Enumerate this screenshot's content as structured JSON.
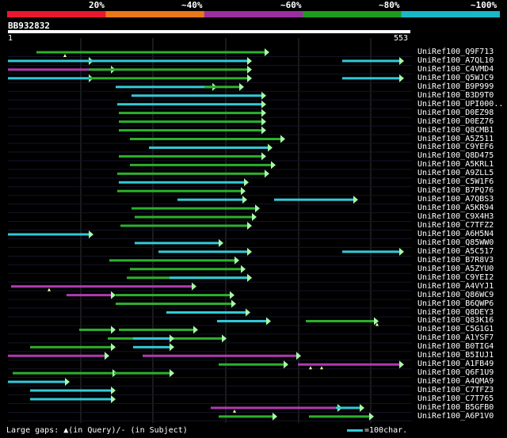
{
  "legend": {
    "labels": [
      "20%",
      "~40%",
      "~60%",
      "~80%",
      "~100%"
    ],
    "colors": [
      "#e8182f",
      "#e8781a",
      "#9c2fa0",
      "#1e9a1e",
      "#18b8c8"
    ]
  },
  "query": {
    "id": "BB932832",
    "start": "1",
    "end": "553"
  },
  "colors": {
    "green": "#2db02d",
    "cyan": "#33c9d8",
    "magenta": "#b03ab0",
    "grid": "#333333",
    "arrow_fill": "#a6f9a6",
    "gap_marker": "#ffffa0"
  },
  "hits": [
    {
      "label": "UniRef100_Q9F713",
      "segs": [
        [
          46,
          340,
          "green"
        ]
      ],
      "gaps": [
        82
      ]
    },
    {
      "label": "UniRef100_A7QL10",
      "segs": [
        [
          10,
          118,
          "cyan"
        ],
        [
          112,
          318,
          "cyan"
        ],
        [
          432,
          510,
          "cyan"
        ]
      ]
    },
    {
      "label": "UniRef100_C4VMD4",
      "segs": [
        [
          10,
          146,
          "magenta"
        ],
        [
          112,
          318,
          "green"
        ]
      ]
    },
    {
      "label": "UniRef100_Q5WJC9",
      "segs": [
        [
          10,
          118,
          "cyan"
        ],
        [
          112,
          318,
          "green"
        ],
        [
          432,
          510,
          "cyan"
        ]
      ]
    },
    {
      "label": "UniRef100_B9P999",
      "segs": [
        [
          146,
          274,
          "cyan"
        ],
        [
          258,
          308,
          "green"
        ]
      ]
    },
    {
      "label": "UniRef100_B3D9T0",
      "segs": [
        [
          166,
          336,
          "cyan"
        ]
      ]
    },
    {
      "label": "UniRef100_UPI000..",
      "segs": [
        [
          148,
          336,
          "cyan"
        ]
      ]
    },
    {
      "label": "UniRef100_D0EZ98",
      "segs": [
        [
          150,
          336,
          "green"
        ]
      ]
    },
    {
      "label": "UniRef100_D0EZ76",
      "segs": [
        [
          150,
          336,
          "green"
        ]
      ]
    },
    {
      "label": "UniRef100_Q8CMB1",
      "segs": [
        [
          150,
          336,
          "green"
        ]
      ]
    },
    {
      "label": "UniRef100_A5Z511",
      "segs": [
        [
          164,
          360,
          "green"
        ]
      ]
    },
    {
      "label": "UniRef100_C9YEF6",
      "segs": [
        [
          188,
          344,
          "cyan"
        ]
      ]
    },
    {
      "label": "UniRef100_Q8D475",
      "segs": [
        [
          150,
          336,
          "green"
        ]
      ]
    },
    {
      "label": "UniRef100_A5KRL1",
      "segs": [
        [
          164,
          348,
          "green"
        ]
      ]
    },
    {
      "label": "UniRef100_A9ZLL5",
      "segs": [
        [
          148,
          340,
          "green"
        ]
      ]
    },
    {
      "label": "UniRef100_C5W1F6",
      "segs": [
        [
          150,
          314,
          "cyan"
        ]
      ]
    },
    {
      "label": "UniRef100_B7PQ76",
      "segs": [
        [
          148,
          310,
          "green"
        ]
      ]
    },
    {
      "label": "UniRef100_A7QBS3",
      "segs": [
        [
          224,
          312,
          "cyan"
        ],
        [
          346,
          452,
          "cyan"
        ]
      ]
    },
    {
      "label": "UniRef100_A5KR94",
      "segs": [
        [
          166,
          328,
          "green"
        ]
      ]
    },
    {
      "label": "UniRef100_C9X4H3",
      "segs": [
        [
          170,
          324,
          "green"
        ]
      ]
    },
    {
      "label": "UniRef100_C7TFZ2",
      "segs": [
        [
          152,
          318,
          "green"
        ]
      ]
    },
    {
      "label": "UniRef100_A6H5N4",
      "segs": [
        [
          10,
          118,
          "cyan"
        ]
      ]
    },
    {
      "label": "UniRef100_Q85WW0",
      "segs": [
        [
          170,
          282,
          "cyan"
        ]
      ]
    },
    {
      "label": "UniRef100_A5C517",
      "segs": [
        [
          200,
          318,
          "cyan"
        ],
        [
          432,
          510,
          "cyan"
        ]
      ]
    },
    {
      "label": "UniRef100_B7R8V3",
      "segs": [
        [
          138,
          302,
          "green"
        ]
      ]
    },
    {
      "label": "UniRef100_A5ZYU0",
      "segs": [
        [
          164,
          310,
          "green"
        ]
      ]
    },
    {
      "label": "UniRef100_C9YEI2",
      "segs": [
        [
          160,
          318,
          "green"
        ],
        [
          214,
          318,
          "cyan"
        ]
      ]
    },
    {
      "label": "UniRef100_A4VYJ1",
      "segs": [
        [
          14,
          248,
          "magenta"
        ]
      ],
      "gaps": [
        62
      ]
    },
    {
      "label": "UniRef100_Q86WC9",
      "segs": [
        [
          84,
          146,
          "magenta"
        ],
        [
          146,
          296,
          "green"
        ]
      ]
    },
    {
      "label": "UniRef100_B6QWP6",
      "segs": [
        [
          146,
          298,
          "green"
        ]
      ]
    },
    {
      "label": "UniRef100_Q8DEY3",
      "segs": [
        [
          210,
          316,
          "cyan"
        ]
      ]
    },
    {
      "label": "UniRef100_Q83K16",
      "segs": [
        [
          274,
          342,
          "cyan"
        ],
        [
          386,
          478,
          "green"
        ]
      ],
      "gaps": [
        476
      ]
    },
    {
      "label": "UniRef100_C5G1G1",
      "segs": [
        [
          100,
          146,
          "green"
        ],
        [
          150,
          250,
          "green"
        ]
      ]
    },
    {
      "label": "UniRef100_A1YSF7",
      "segs": [
        [
          136,
          286,
          "green"
        ],
        [
          168,
          220,
          "cyan"
        ]
      ]
    },
    {
      "label": "UniRef100_B0TIG4",
      "segs": [
        [
          38,
          146,
          "green"
        ],
        [
          168,
          220,
          "cyan"
        ]
      ]
    },
    {
      "label": "UniRef100_B5IUJ1",
      "segs": [
        [
          10,
          138,
          "magenta"
        ],
        [
          180,
          380,
          "magenta"
        ]
      ]
    },
    {
      "label": "UniRef100_A1FB49",
      "segs": [
        [
          276,
          364,
          "green"
        ],
        [
          376,
          510,
          "magenta"
        ]
      ],
      "gaps": [
        392,
        406
      ]
    },
    {
      "label": "UniRef100_Q6F1U9",
      "segs": [
        [
          16,
          148,
          "green"
        ],
        [
          144,
          220,
          "green"
        ]
      ]
    },
    {
      "label": "UniRef100_A4QMA9",
      "segs": [
        [
          10,
          88,
          "cyan"
        ]
      ]
    },
    {
      "label": "UniRef100_C7TFZ3",
      "segs": [
        [
          38,
          146,
          "cyan"
        ]
      ]
    },
    {
      "label": "UniRef100_C7T765",
      "segs": [
        [
          38,
          146,
          "cyan"
        ]
      ]
    },
    {
      "label": "UniRef100_B5GFB0",
      "segs": [
        [
          266,
          432,
          "magenta"
        ],
        [
          424,
          460,
          "cyan"
        ]
      ],
      "gaps": [
        296
      ]
    },
    {
      "label": "UniRef100_A6P1V0",
      "segs": [
        [
          276,
          350,
          "green"
        ],
        [
          390,
          472,
          "green"
        ]
      ]
    }
  ],
  "footer": {
    "gaps_text": "Large gaps: ▲(in Query)/- (in Subject)",
    "scale_text": "=100char."
  }
}
